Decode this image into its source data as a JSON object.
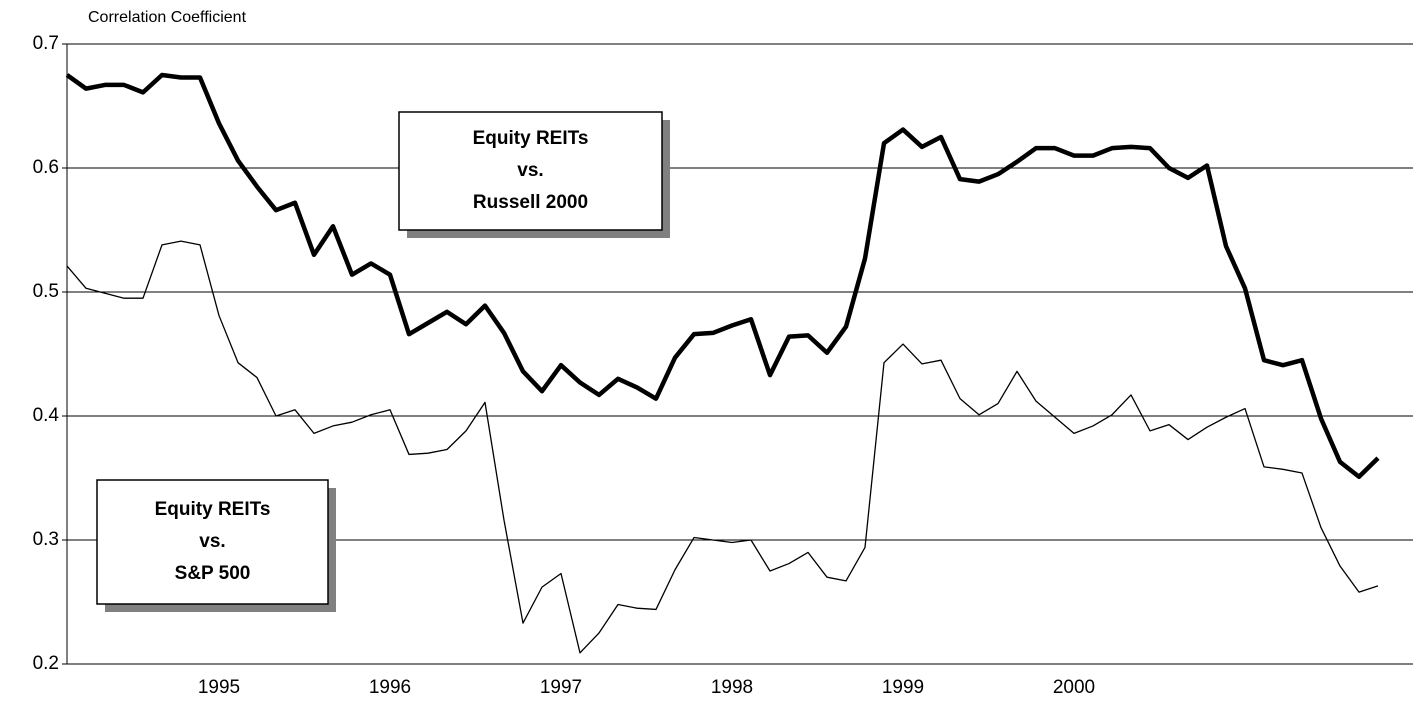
{
  "chart_data": {
    "type": "line",
    "y_label": "Correlation Coefficient",
    "categories": [
      null,
      null,
      null,
      null,
      null,
      null,
      null,
      null,
      "1995",
      null,
      null,
      null,
      null,
      null,
      null,
      null,
      null,
      "1996",
      null,
      null,
      null,
      null,
      null,
      null,
      null,
      null,
      "1997",
      null,
      null,
      null,
      null,
      null,
      null,
      null,
      null,
      "1998",
      null,
      null,
      null,
      null,
      null,
      null,
      null,
      null,
      "1999",
      null,
      null,
      null,
      null,
      null,
      null,
      null,
      null,
      "2000",
      null,
      null,
      null,
      null,
      null,
      null,
      null,
      null,
      null,
      null,
      null,
      null,
      null,
      null,
      null,
      null
    ],
    "series": [
      {
        "color": "#000000",
        "width": 4.5,
        "values": [
          0.675,
          0.664,
          0.667,
          0.667,
          0.661,
          0.675,
          0.673,
          0.673,
          0.636,
          0.606,
          0.585,
          0.566,
          0.572,
          0.53,
          0.553,
          0.514,
          0.523,
          0.514,
          0.466,
          0.475,
          0.484,
          0.474,
          0.489,
          0.467,
          0.436,
          0.42,
          0.441,
          0.427,
          0.417,
          0.43,
          0.423,
          0.414,
          0.447,
          0.466,
          0.467,
          0.473,
          0.478,
          0.433,
          0.464,
          0.465,
          0.451,
          0.472,
          0.527,
          0.62,
          0.631,
          0.617,
          0.625,
          0.591,
          0.589,
          0.595,
          0.605,
          0.616,
          0.616,
          0.61,
          0.61,
          0.616,
          0.617,
          0.616,
          0.6,
          0.592,
          0.602,
          0.537,
          0.503,
          0.445,
          0.441,
          0.445,
          0.398,
          0.363,
          0.351,
          0.366
        ]
      },
      {
        "color": "#000000",
        "width": 1.3,
        "values": [
          0.521,
          0.503,
          0.499,
          0.495,
          0.495,
          0.538,
          0.541,
          0.538,
          0.481,
          0.443,
          0.431,
          0.4,
          0.405,
          0.386,
          0.392,
          0.395,
          0.401,
          0.405,
          0.369,
          0.37,
          0.373,
          0.388,
          0.411,
          0.316,
          0.233,
          0.262,
          0.273,
          0.209,
          0.225,
          0.248,
          0.245,
          0.244,
          0.276,
          0.302,
          0.3,
          0.298,
          0.3,
          0.275,
          0.281,
          0.29,
          0.27,
          0.267,
          0.294,
          0.443,
          0.458,
          0.442,
          0.445,
          0.414,
          0.401,
          0.41,
          0.436,
          0.412,
          0.399,
          0.386,
          0.392,
          0.401,
          0.417,
          0.388,
          0.393,
          0.381,
          0.391,
          0.399,
          0.406,
          0.359,
          0.357,
          0.354,
          0.31,
          0.279,
          0.258,
          0.263
        ]
      }
    ],
    "annotations": [
      {
        "lines": [
          "Equity REITs",
          "vs.",
          "Russell 2000"
        ]
      },
      {
        "lines": [
          "Equity REITs",
          "vs.",
          "S&P 500"
        ]
      }
    ],
    "ylim": [
      0.2,
      0.7
    ],
    "yticks": [
      0.2,
      0.3,
      0.4,
      0.5,
      0.6,
      0.7
    ],
    "grid": true
  }
}
